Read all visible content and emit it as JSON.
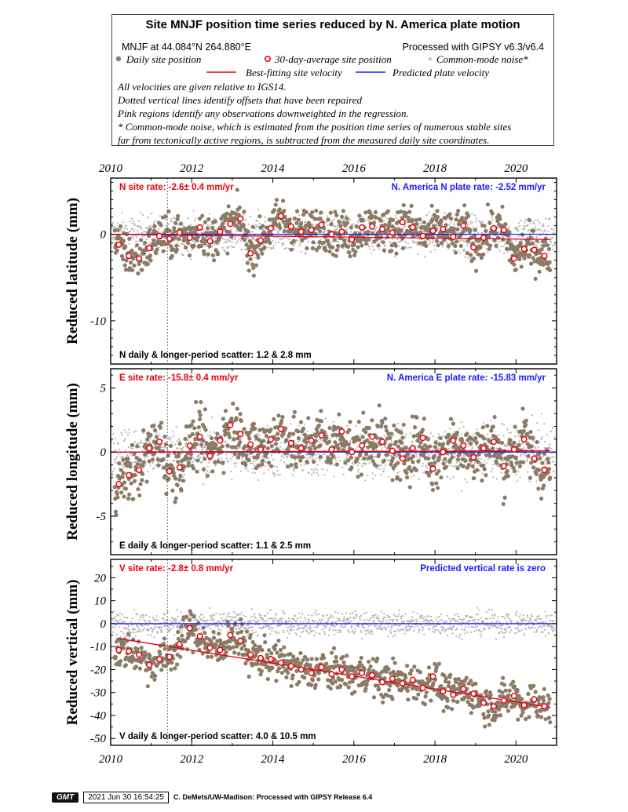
{
  "header": {
    "title": "Site MNJF position time series reduced by N. America plate motion",
    "location": "MNJF at 44.084°N 264.880°E",
    "processing": "Processed with GIPSY v6.3/v6.4",
    "legend": {
      "daily": "Daily site position",
      "avg30": "30-day-average site position",
      "cmn": "Common-mode noise*",
      "bestfit": "Best-fitting site velocity",
      "predicted": "Predicted plate velocity"
    },
    "notes": [
      "All velocities are given relative to IGS14.",
      "Dotted vertical lines identify offsets that have been repaired",
      "Pink regions identify any observations downweighted in the regression.",
      "* Common-mode noise, which is estimated from the position time series of numerous stable sites",
      "far from tectonically active regions, is subtracted from the measured daily site coordinates."
    ]
  },
  "colors": {
    "daily": "#8b7b66",
    "avg_ring": "#e8000b",
    "cmn": "#b3b3b3",
    "bestfit": "#e8000b",
    "predicted": "#1a1aff",
    "rate_red": "#e8000b",
    "rate_blue": "#1a1aff"
  },
  "chart_data": [
    {
      "type": "scatter",
      "component": "N",
      "ylabel": "Reduced latitude (mm)",
      "xlim": [
        2010.0,
        2021.0
      ],
      "ylim": [
        -15.0,
        6.5
      ],
      "xticks": [
        2010,
        2012,
        2014,
        2016,
        2018,
        2020
      ],
      "yticks": [
        0,
        -10
      ],
      "offset_epoch": 2011.4,
      "site_rate": "N site rate:  -2.6± 0.4 mm/yr",
      "plate_rate": "N. America N plate rate: -2.52 mm/yr",
      "scatter_text": "N daily & longer-period scatter:   1.2 &   2.8 mm",
      "best_fit": {
        "x": [
          2010.0,
          2020.85
        ],
        "y": [
          0.0,
          -0.6
        ]
      },
      "predicted": {
        "x": [
          2010.0,
          2021.0
        ],
        "y": [
          0.0,
          0.0
        ]
      },
      "avg30": {
        "x": [
          2010.2,
          2010.45,
          2010.7,
          2010.95,
          2011.2,
          2011.45,
          2011.7,
          2011.95,
          2012.2,
          2012.45,
          2012.7,
          2012.95,
          2013.2,
          2013.45,
          2013.7,
          2013.95,
          2014.2,
          2014.45,
          2014.7,
          2014.95,
          2015.2,
          2015.45,
          2015.7,
          2015.95,
          2016.2,
          2016.45,
          2016.7,
          2016.95,
          2017.2,
          2017.45,
          2017.7,
          2017.95,
          2018.2,
          2018.45,
          2018.7,
          2018.95,
          2019.2,
          2019.45,
          2019.7,
          2019.95,
          2020.2,
          2020.45,
          2020.7
        ],
        "y": [
          -1.2,
          -2.5,
          -2.8,
          -1.6,
          -0.2,
          -0.5,
          0.2,
          -0.4,
          0.8,
          -0.8,
          0.3,
          1.2,
          1.8,
          -2.2,
          -0.7,
          0.7,
          2.1,
          0.9,
          0.3,
          0.5,
          1.1,
          0.0,
          0.3,
          -0.6,
          0.8,
          0.9,
          0.6,
          0.2,
          1.4,
          0.8,
          -0.2,
          0.4,
          0.6,
          -0.3,
          1.0,
          -1.5,
          -0.4,
          0.7,
          0.5,
          -2.8,
          -1.7,
          -1.8,
          -2.5
        ]
      },
      "daily_spread": 1.2,
      "cmn_spread": 1.1
    },
    {
      "type": "scatter",
      "component": "E",
      "ylabel": "Reduced longitude (mm)",
      "xlim": [
        2010.0,
        2021.0
      ],
      "ylim": [
        -8.0,
        6.5
      ],
      "xticks": [
        2010,
        2012,
        2014,
        2016,
        2018,
        2020
      ],
      "yticks": [
        5,
        0,
        -5
      ],
      "offset_epoch": 2011.4,
      "site_rate": "E site rate: -15.8± 0.4 mm/yr",
      "plate_rate": "N. America E plate rate: -15.83 mm/yr",
      "scatter_text": "E daily & longer-period scatter:   1.1 &   2.5 mm",
      "best_fit": {
        "x": [
          2010.0,
          2020.85
        ],
        "y": [
          0.0,
          0.1
        ]
      },
      "predicted": {
        "x": [
          2010.0,
          2021.0
        ],
        "y": [
          0.0,
          0.0
        ]
      },
      "avg30": {
        "x": [
          2010.2,
          2010.45,
          2010.7,
          2010.95,
          2011.2,
          2011.45,
          2011.7,
          2011.95,
          2012.2,
          2012.45,
          2012.7,
          2012.95,
          2013.2,
          2013.45,
          2013.7,
          2013.95,
          2014.2,
          2014.45,
          2014.7,
          2014.95,
          2015.2,
          2015.45,
          2015.7,
          2015.95,
          2016.2,
          2016.45,
          2016.7,
          2016.95,
          2017.2,
          2017.45,
          2017.7,
          2017.95,
          2018.2,
          2018.45,
          2018.7,
          2018.95,
          2019.2,
          2019.45,
          2019.7,
          2019.95,
          2020.2,
          2020.45,
          2020.7
        ],
        "y": [
          -2.5,
          -1.8,
          -1.4,
          0.3,
          0.8,
          -1.5,
          -1.2,
          0.5,
          1.2,
          -0.3,
          0.9,
          2.1,
          1.4,
          0.6,
          0.2,
          1.0,
          1.8,
          0.7,
          0.3,
          0.9,
          1.3,
          0.2,
          1.6,
          0.0,
          0.5,
          1.2,
          0.8,
          0.1,
          -0.5,
          0.3,
          1.1,
          -1.3,
          0.0,
          0.9,
          0.5,
          -0.4,
          0.3,
          0.8,
          -1.1,
          0.2,
          1.0,
          -0.5,
          -1.4
        ]
      },
      "daily_spread": 1.1,
      "cmn_spread": 1.0
    },
    {
      "type": "scatter",
      "component": "V",
      "ylabel": "Reduced vertical (mm)",
      "xlim": [
        2010.0,
        2021.0
      ],
      "ylim": [
        -53.0,
        28.0
      ],
      "xticks": [
        2010,
        2012,
        2014,
        2016,
        2018,
        2020
      ],
      "yticks": [
        20,
        10,
        0,
        -10,
        -20,
        -30,
        -40,
        -50
      ],
      "offset_epoch": 2011.4,
      "site_rate": "V site rate:  -2.8± 0.8 mm/yr",
      "plate_rate": "Predicted vertical rate is zero",
      "scatter_text": "V daily & longer-period scatter:   4.0 &  10.5 mm",
      "best_fit": {
        "x": [
          2010.2,
          2020.85
        ],
        "y": [
          -6.5,
          -36.5
        ]
      },
      "predicted": {
        "x": [
          2010.0,
          2021.0
        ],
        "y": [
          0.0,
          0.0
        ]
      },
      "avg30": {
        "x": [
          2010.2,
          2010.45,
          2010.7,
          2010.95,
          2011.2,
          2011.45,
          2011.7,
          2011.95,
          2012.2,
          2012.45,
          2012.7,
          2012.95,
          2013.2,
          2013.45,
          2013.7,
          2013.95,
          2014.2,
          2014.45,
          2014.7,
          2014.95,
          2015.2,
          2015.45,
          2015.7,
          2015.95,
          2016.2,
          2016.45,
          2016.7,
          2016.95,
          2017.2,
          2017.45,
          2017.7,
          2017.95,
          2018.2,
          2018.45,
          2018.7,
          2018.95,
          2019.2,
          2019.45,
          2019.7,
          2019.95,
          2020.2,
          2020.45,
          2020.7
        ],
        "y": [
          -11.5,
          -12.0,
          -13.5,
          -18.0,
          -15.5,
          -14.5,
          -9.0,
          -2.0,
          -5.5,
          -10.5,
          -11.5,
          -5.0,
          -7.5,
          -13.5,
          -15.0,
          -15.5,
          -17.0,
          -18.5,
          -20.0,
          -21.5,
          -19.0,
          -22.0,
          -20.0,
          -23.0,
          -21.5,
          -22.5,
          -25.5,
          -24.0,
          -26.0,
          -24.5,
          -28.0,
          -23.0,
          -29.5,
          -31.0,
          -28.5,
          -30.5,
          -34.5,
          -36.0,
          -33.5,
          -31.5,
          -35.5,
          -33.0,
          -36.0
        ]
      },
      "daily_spread": 4.0,
      "cmn_spread": 2.5
    }
  ],
  "footer": {
    "logo": "GMT",
    "timestamp": "2021 Jun 30 16:54:25",
    "credit": "C. DeMets/UW-Madison: Processed with GIPSY Release 6.4"
  }
}
